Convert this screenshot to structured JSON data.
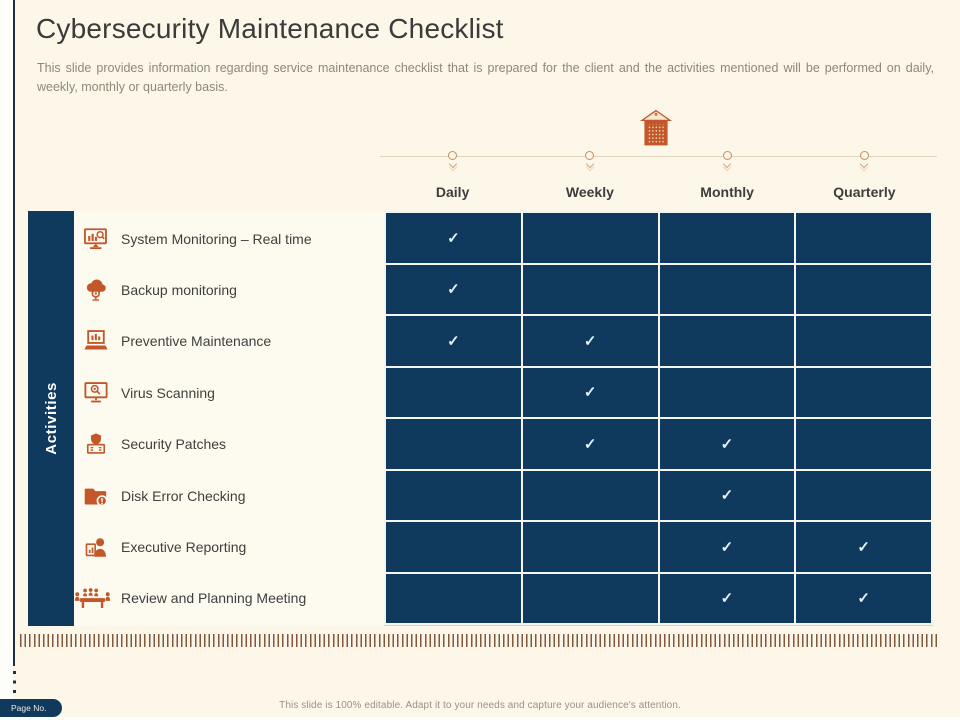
{
  "header": {
    "title": "Cybersecurity Maintenance Checklist",
    "subtitle": "This slide provides information regarding service maintenance checklist that is prepared for the client and the activities mentioned will be performed on daily, weekly, monthly or quarterly basis."
  },
  "colors": {
    "navy": "#0F3A5D",
    "orange": "#C2582A",
    "cream_background": "#FCF7E9",
    "check_mark": "#E3F1F6",
    "dash_strip": "#84563C"
  },
  "timeline": {
    "icon": "calendar-icon"
  },
  "table": {
    "axis_label": "Activities",
    "columns": [
      "Daily",
      "Weekly",
      "Monthly",
      "Quarterly"
    ],
    "check_glyph": "✓",
    "rows": [
      {
        "icon": "system-monitoring-icon",
        "label": "System Monitoring – Real time",
        "checks": [
          true,
          false,
          false,
          false
        ]
      },
      {
        "icon": "backup-monitoring-icon",
        "label": "Backup monitoring",
        "checks": [
          true,
          false,
          false,
          false
        ]
      },
      {
        "icon": "preventive-maintenance-icon",
        "label": "Preventive Maintenance",
        "checks": [
          true,
          true,
          false,
          false
        ]
      },
      {
        "icon": "virus-scanning-icon",
        "label": "Virus Scanning",
        "checks": [
          false,
          true,
          false,
          false
        ]
      },
      {
        "icon": "security-patches-icon",
        "label": "Security Patches",
        "checks": [
          false,
          true,
          true,
          false
        ]
      },
      {
        "icon": "disk-error-checking-icon",
        "label": "Disk Error Checking",
        "checks": [
          false,
          false,
          true,
          false
        ]
      },
      {
        "icon": "executive-reporting-icon",
        "label": "Executive Reporting",
        "checks": [
          false,
          false,
          true,
          true
        ]
      },
      {
        "icon": "review-planning-meeting-icon",
        "label": "Review and Planning Meeting",
        "checks": [
          false,
          false,
          true,
          true
        ]
      }
    ]
  },
  "footer": {
    "page_label": "Page No.",
    "note": "This slide is 100% editable. Adapt it to your needs and capture your audience's attention."
  }
}
